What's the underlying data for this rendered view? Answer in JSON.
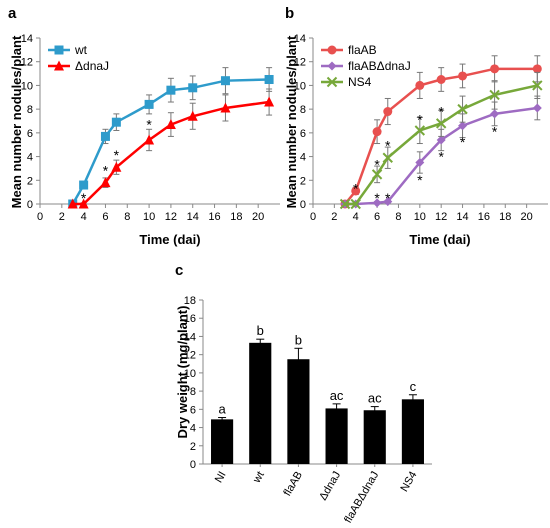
{
  "figure": {
    "panel_labels": [
      "a",
      "b",
      "c"
    ]
  },
  "chart_data": [
    {
      "panel": "a",
      "type": "line",
      "xlabel": "Time (dai)",
      "ylabel": "Mean number nodules/plant",
      "xlim": [
        0,
        22
      ],
      "ylim": [
        0,
        14
      ],
      "xticks": [
        0,
        2,
        4,
        6,
        8,
        10,
        12,
        14,
        16,
        18,
        20
      ],
      "yticks": [
        0,
        2,
        4,
        6,
        8,
        10,
        12,
        14
      ],
      "legend_position": "top-left",
      "series": [
        {
          "name": "wt",
          "color": "#2E9BCB",
          "marker": "square",
          "x": [
            3,
            4,
            6,
            7,
            10,
            12,
            14,
            17,
            21
          ],
          "y": [
            0,
            1.6,
            5.7,
            6.9,
            8.4,
            9.6,
            9.8,
            10.4,
            10.5
          ],
          "err": [
            0.1,
            0.3,
            0.6,
            0.7,
            0.8,
            1.0,
            1.0,
            1.1,
            1.0
          ]
        },
        {
          "name": "ΔdnaJ",
          "color": "#FF0000",
          "marker": "triangle",
          "x": [
            3,
            4,
            6,
            7,
            10,
            12,
            14,
            17,
            21
          ],
          "y": [
            0,
            0,
            1.8,
            3.1,
            5.4,
            6.7,
            7.4,
            8.1,
            8.6
          ],
          "err": [
            0,
            0.1,
            0.4,
            0.6,
            0.9,
            1.0,
            1.1,
            1.1,
            1.1
          ]
        }
      ],
      "significance": [
        {
          "text": "*",
          "x": 4,
          "y": 0.6
        },
        {
          "text": "*",
          "x": 6,
          "y": 2.9
        },
        {
          "text": "*",
          "x": 7,
          "y": 4.2
        },
        {
          "text": "*",
          "x": 10,
          "y": 6.8
        }
      ]
    },
    {
      "panel": "b",
      "type": "line",
      "xlabel": "Time (dai)",
      "ylabel": "Mean number nodules/plant",
      "xlim": [
        0,
        22
      ],
      "ylim": [
        0,
        14
      ],
      "xticks": [
        0,
        2,
        4,
        6,
        8,
        10,
        12,
        14,
        16,
        18,
        20
      ],
      "yticks": [
        0,
        2,
        4,
        6,
        8,
        10,
        12,
        14
      ],
      "legend_position": "top-left",
      "series": [
        {
          "name": "flaAB",
          "color": "#E8504F",
          "marker": "circle",
          "x": [
            3,
            4,
            6,
            7,
            10,
            12,
            14,
            17,
            21
          ],
          "y": [
            0,
            1.1,
            6.1,
            7.8,
            10.0,
            10.5,
            10.8,
            11.4,
            11.4
          ],
          "err": [
            0.1,
            0.3,
            1.0,
            1.1,
            1.1,
            1.0,
            1.0,
            1.1,
            1.1
          ]
        },
        {
          "name": "flaABΔdnaJ",
          "color": "#9E6BC2",
          "marker": "diamond",
          "x": [
            3,
            4,
            6,
            7,
            10,
            12,
            14,
            17,
            21
          ],
          "y": [
            0,
            0,
            0.1,
            0.2,
            3.5,
            5.4,
            6.6,
            7.6,
            8.1
          ],
          "err": [
            0,
            0,
            0.1,
            0.1,
            0.9,
            0.9,
            1.0,
            1.0,
            1.0
          ]
        },
        {
          "name": "NS4",
          "color": "#77A83A",
          "marker": "x",
          "x": [
            3,
            4,
            6,
            7,
            10,
            12,
            14,
            17,
            21
          ],
          "y": [
            0,
            0,
            2.5,
            3.9,
            6.2,
            6.8,
            8.0,
            9.2,
            10.0
          ],
          "err": [
            0,
            0.1,
            0.7,
            0.9,
            1.1,
            1.1,
            1.1,
            1.2,
            1.1
          ]
        }
      ],
      "significance": [
        {
          "text": "*",
          "x": 4,
          "y": 1.4
        },
        {
          "text": "*",
          "x": 6,
          "y": 3.4
        },
        {
          "text": "*",
          "x": 7,
          "y": 5.0
        },
        {
          "text": "*",
          "x": 6,
          "y": 0.6
        },
        {
          "text": "*",
          "x": 7,
          "y": 0.6
        },
        {
          "text": "*",
          "x": 10,
          "y": 7.2
        },
        {
          "text": "*",
          "x": 12,
          "y": 7.9
        },
        {
          "text": "*",
          "x": 10,
          "y": 2.1
        },
        {
          "text": "*",
          "x": 12,
          "y": 4.1
        },
        {
          "text": "*",
          "x": 14,
          "y": 5.3
        },
        {
          "text": "*",
          "x": 17,
          "y": 6.2
        }
      ]
    },
    {
      "panel": "c",
      "type": "bar",
      "xlabel": "",
      "ylabel": "Dry weight (mg/plant)",
      "ylim": [
        0,
        18
      ],
      "yticks": [
        0,
        2,
        4,
        6,
        8,
        10,
        12,
        14,
        16,
        18
      ],
      "categories": [
        "NI",
        "wt",
        "flaAB",
        "ΔdnaJ",
        "flaABΔdnaJ",
        "NS4"
      ],
      "values": [
        4.9,
        13.3,
        11.5,
        6.1,
        5.9,
        7.1
      ],
      "err": [
        0.2,
        0.4,
        1.2,
        0.5,
        0.4,
        0.5
      ],
      "letters": [
        "a",
        "b",
        "b",
        "ac",
        "ac",
        "c"
      ],
      "bar_color": "#000000"
    }
  ]
}
